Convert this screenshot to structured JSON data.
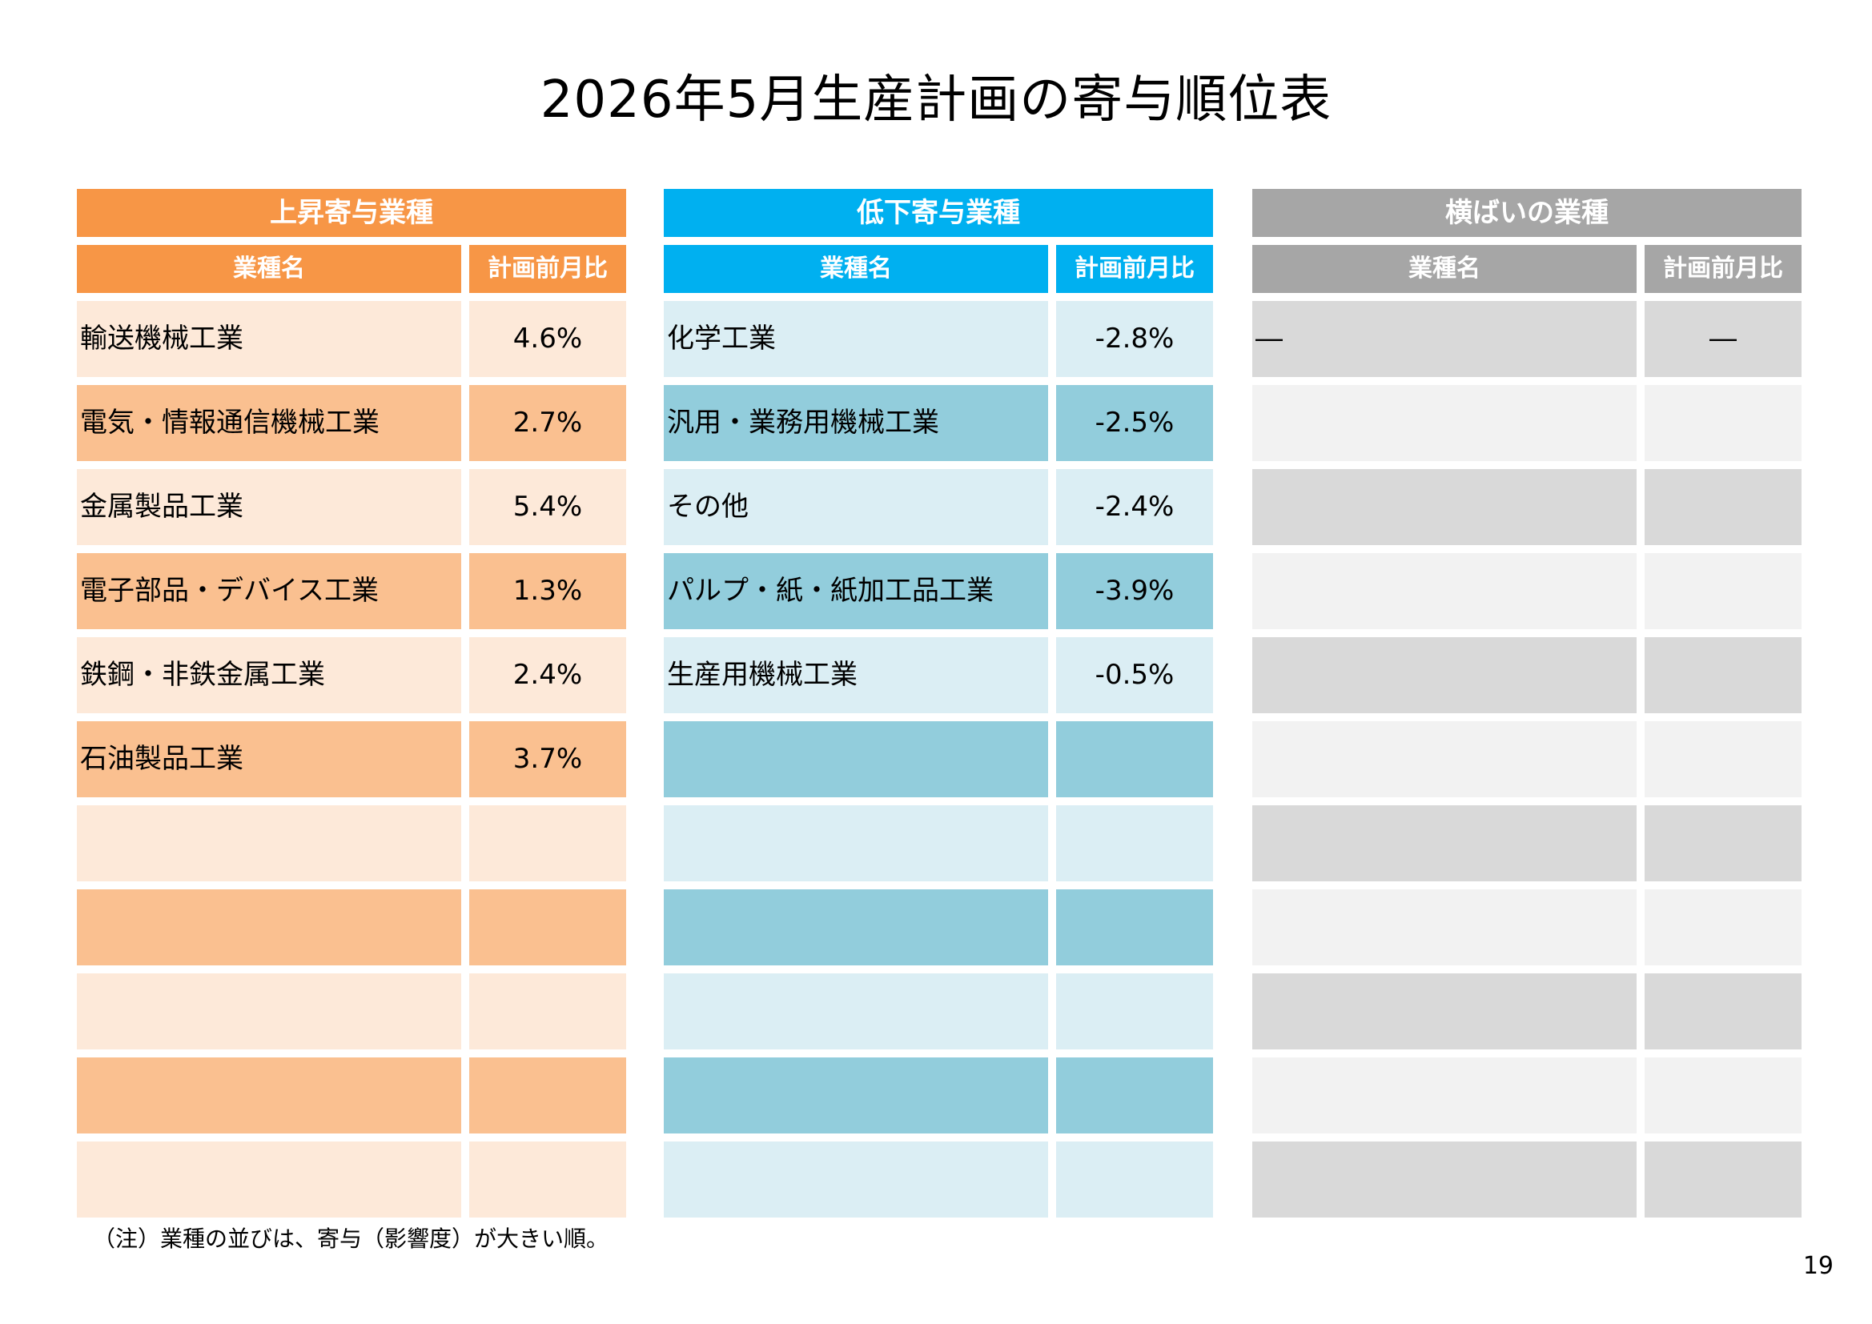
{
  "title": "2026年5月生産計画の寄与順位表",
  "colors": {
    "up_head": "#F79646",
    "up_row_light": "#FDE9D9",
    "up_row_dark": "#FAC090",
    "down_head": "#00B0F0",
    "down_row_light": "#DBEEF4",
    "down_row_dark": "#92CDDC",
    "flat_head": "#A6A6A6",
    "flat_row_dark": "#D9D9D9",
    "flat_row_light": "#F2F2F2"
  },
  "panels": [
    {
      "key": "up",
      "heading": "上昇寄与業種",
      "col_name": "業種名",
      "col_value": "計画前月比",
      "rows": [
        {
          "name": "輸送機械工業",
          "value": "4.6%"
        },
        {
          "name": "電気・情報通信機械工業",
          "value": "2.7%"
        },
        {
          "name": "金属製品工業",
          "value": "5.4%"
        },
        {
          "name": "電子部品・デバイス工業",
          "value": "1.3%"
        },
        {
          "name": "鉄鋼・非鉄金属工業",
          "value": "2.4%"
        },
        {
          "name": "石油製品工業",
          "value": "3.7%"
        },
        {
          "name": "",
          "value": ""
        },
        {
          "name": "",
          "value": ""
        },
        {
          "name": "",
          "value": ""
        },
        {
          "name": "",
          "value": ""
        },
        {
          "name": "",
          "value": ""
        }
      ]
    },
    {
      "key": "down",
      "heading": "低下寄与業種",
      "col_name": "業種名",
      "col_value": "計画前月比",
      "rows": [
        {
          "name": "化学工業",
          "value": "-2.8%"
        },
        {
          "name": "汎用・業務用機械工業",
          "value": "-2.5%"
        },
        {
          "name": "その他",
          "value": "-2.4%"
        },
        {
          "name": "パルプ・紙・紙加工品工業",
          "value": "-3.9%"
        },
        {
          "name": "生産用機械工業",
          "value": "-0.5%"
        },
        {
          "name": "",
          "value": ""
        },
        {
          "name": "",
          "value": ""
        },
        {
          "name": "",
          "value": ""
        },
        {
          "name": "",
          "value": ""
        },
        {
          "name": "",
          "value": ""
        },
        {
          "name": "",
          "value": ""
        }
      ]
    },
    {
      "key": "flat",
      "heading": "横ばいの業種",
      "col_name": "業種名",
      "col_value": "計画前月比",
      "rows": [
        {
          "name": "―",
          "value": "―"
        },
        {
          "name": "",
          "value": ""
        },
        {
          "name": "",
          "value": ""
        },
        {
          "name": "",
          "value": ""
        },
        {
          "name": "",
          "value": ""
        },
        {
          "name": "",
          "value": ""
        },
        {
          "name": "",
          "value": ""
        },
        {
          "name": "",
          "value": ""
        },
        {
          "name": "",
          "value": ""
        },
        {
          "name": "",
          "value": ""
        },
        {
          "name": "",
          "value": ""
        }
      ]
    }
  ],
  "note": "（注）業種の並びは、寄与（影響度）が大きい順。",
  "page_number": "19"
}
